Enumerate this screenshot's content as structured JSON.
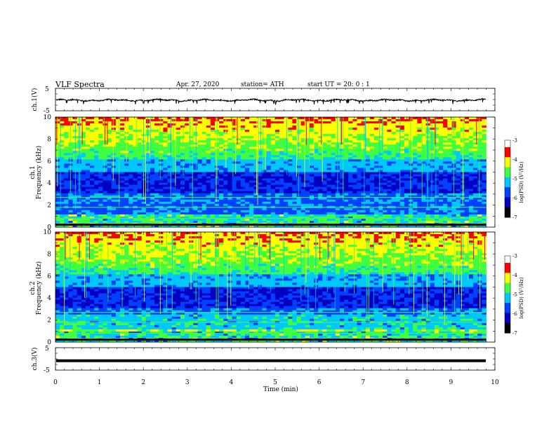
{
  "header": {
    "title": "VLF  Spectra",
    "date": "Apr. 27, 2020",
    "station": "station= ATH",
    "start": "start  UT  =    20: 0   : 1"
  },
  "chart_data": [
    {
      "type": "line",
      "name": "ch1_waveform",
      "ylabel": "ch.1(V)",
      "ylim": [
        -5,
        5
      ],
      "yticks": [
        "5",
        "-5"
      ],
      "baseline": -0.3,
      "amplitude": 0.6
    },
    {
      "type": "heatmap",
      "name": "ch1_spectrogram",
      "ylabel_line1": "ch.1",
      "ylabel_line2": "Frequency  (kHz)",
      "ylim": [
        0,
        10
      ],
      "yticks": [
        "0",
        "2",
        "4",
        "6",
        "8",
        "10"
      ],
      "colorbar": {
        "label": "log(PSD) (V²/Hz)",
        "range": [
          -7,
          -3
        ],
        "ticks": [
          "-3",
          "-4",
          "-5",
          "-6",
          "-7"
        ]
      }
    },
    {
      "type": "heatmap",
      "name": "ch2_spectrogram",
      "ylabel_line1": "ch.2",
      "ylabel_line2": "Frequency  (kHz)",
      "ylim": [
        0,
        10
      ],
      "yticks": [
        "0",
        "2",
        "4",
        "6",
        "8",
        "10"
      ],
      "colorbar": {
        "label": "log(PSD) (V²/Hz)",
        "range": [
          -7,
          -3
        ],
        "ticks": [
          "-3",
          "-4",
          "-5",
          "-6",
          "-7"
        ]
      }
    },
    {
      "type": "line",
      "name": "ch3_waveform",
      "ylabel": "ch.3(V)",
      "ylim": [
        -5,
        5
      ],
      "yticks": [
        "5",
        "-5"
      ],
      "baseline": -0.8,
      "amplitude": 0
    }
  ],
  "xaxis": {
    "label": "Time  (min)",
    "xlim": [
      0,
      10
    ],
    "ticks": [
      "0",
      "1",
      "2",
      "3",
      "4",
      "5",
      "6",
      "7",
      "8",
      "9",
      "10"
    ],
    "data_end": 9.8
  },
  "colors": {
    "dark": "#000060",
    "navy": "#0000c0",
    "blue": "#0040ff",
    "cyan": "#00c8ff",
    "green": "#40ff40",
    "yellow": "#ffff00",
    "red": "#ff0000"
  }
}
